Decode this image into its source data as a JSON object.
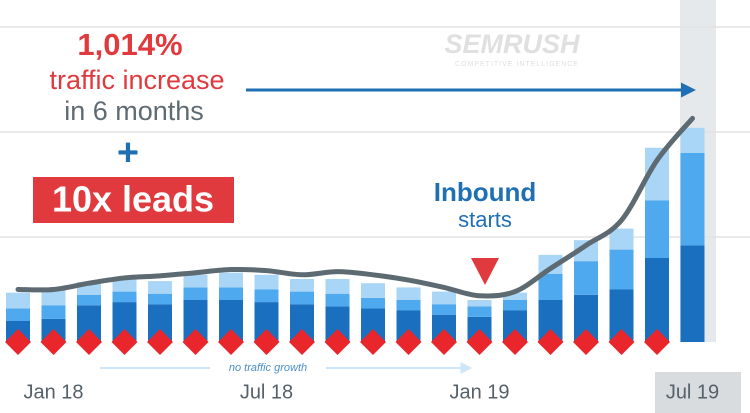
{
  "chart_data": {
    "type": "bar",
    "categories": [
      null,
      "Jan 18",
      null,
      null,
      null,
      null,
      null,
      "Jul 18",
      null,
      null,
      null,
      null,
      null,
      "Jan 19",
      null,
      null,
      null,
      null,
      null,
      "Jul 19"
    ],
    "series": [
      {
        "color": "#1a6fbf",
        "values": [
          20,
          22,
          35,
          38,
          36,
          40,
          40,
          38,
          36,
          34,
          32,
          30,
          26,
          24,
          30,
          40,
          45,
          50,
          80,
          92
        ]
      },
      {
        "color": "#4ea9ee",
        "values": [
          12,
          13,
          10,
          10,
          10,
          12,
          12,
          12,
          12,
          12,
          10,
          10,
          10,
          10,
          10,
          25,
          32,
          38,
          55,
          88
        ]
      },
      {
        "color": "#a9d5f6",
        "values": [
          15,
          15,
          12,
          14,
          12,
          12,
          14,
          14,
          12,
          14,
          14,
          12,
          12,
          6,
          7,
          18,
          20,
          20,
          50,
          24
        ]
      },
      {
        "type": "line",
        "color": "#5d6a72",
        "values": [
          50,
          50,
          56,
          61,
          63,
          66,
          69,
          68,
          64,
          67,
          64,
          59,
          52,
          44,
          48,
          70,
          92,
          116,
          173,
          213
        ]
      }
    ],
    "ylim": [
      0,
      300
    ],
    "yticks": [
      100,
      200,
      300
    ],
    "grid": true,
    "annotations": {
      "headline": "1,014%",
      "line1": "traffic increase",
      "line2": "in 6 months",
      "plus": "+",
      "leads": "10x leads",
      "inbound": "Inbound",
      "starts": "starts",
      "flat": "no traffic growth",
      "logo": "SEMRUSH",
      "logo_sub": "COMPETITIVE INTELLIGENCE"
    }
  }
}
